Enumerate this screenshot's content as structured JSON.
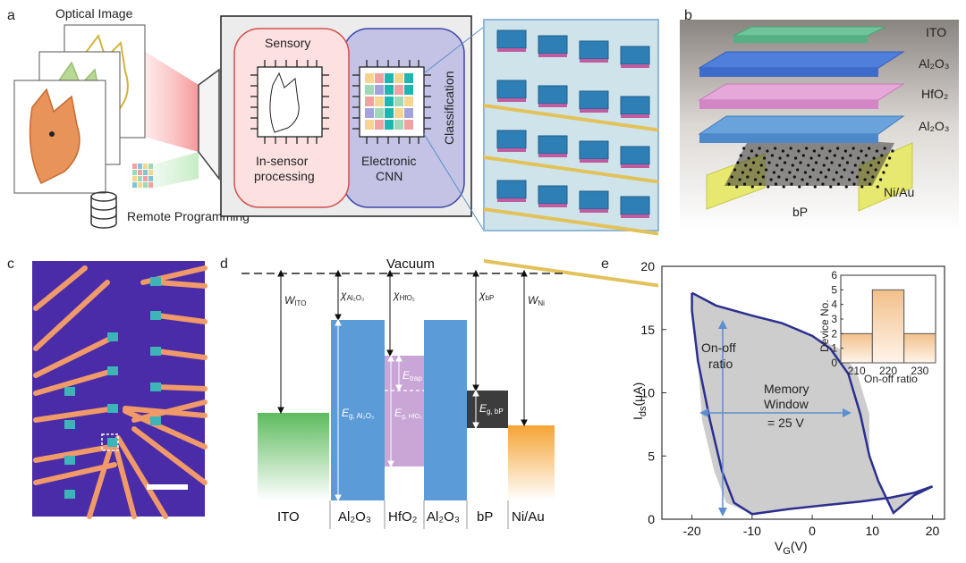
{
  "panel_labels": {
    "a": "a",
    "b": "b",
    "c": "c",
    "d": "d",
    "e": "e"
  },
  "panel_a": {
    "optical_image": "Optical Image",
    "sensory": "Sensory",
    "in_sensor_1": "In-sensor",
    "in_sensor_2": "processing",
    "electronic": "Electronic",
    "cnn": "CNN",
    "classification": "Classification",
    "remote_programming": "Remote Programming"
  },
  "panel_b": {
    "layers": [
      "ITO",
      "Al₂O₃",
      "HfO₂",
      "Al₂O₃"
    ],
    "contact": "Ni/Au",
    "channel": "bP"
  },
  "panel_d": {
    "vacuum": "Vacuum",
    "materials": [
      "ITO",
      "Al₂O₃",
      "HfO₂",
      "Al₂O₃",
      "bP",
      "Ni/Au"
    ],
    "w_ito": "W",
    "w_ito_sub": "ITO",
    "chi_al": "χ",
    "chi_al_sub": "Al₂O₃",
    "chi_hf": "χ",
    "chi_hf_sub": "HfO₂",
    "chi_bp": "χ",
    "chi_bp_sub": "bP",
    "w_ni": "W",
    "w_ni_sub": "Ni",
    "eg_al": "E",
    "eg_al_sub": "g, Al₂O₃",
    "eg_hf": "E",
    "eg_hf_sub": "g, HfO₂",
    "eg_bp": "E",
    "eg_bp_sub": "g, bP",
    "etrap": "E",
    "etrap_sub": "trap"
  },
  "panel_e": {
    "ylabel_main": "I",
    "ylabel_sub": "ds",
    "ylabel_unit": "(μA)",
    "xlabel_main": "V",
    "xlabel_sub": "G",
    "xlabel_unit": "(V)",
    "onoff_1": "On-off",
    "onoff_2": "ratio",
    "mw_1": "Memory",
    "mw_2": "Window",
    "mw_3": "= 25 V",
    "inset_xlabel": "On-off ratio",
    "inset_ylabel": "Device No."
  },
  "chart_data": [
    {
      "type": "line",
      "xlim": [
        -25,
        22
      ],
      "ylim": [
        0,
        20
      ],
      "xticks": [
        -20,
        -10,
        0,
        10,
        20
      ],
      "yticks": [
        0,
        5,
        10,
        15,
        20
      ],
      "series": [
        {
          "values": [
            [
              -20,
              17.9
            ],
            [
              -16,
              16.9
            ],
            [
              -10,
              16.1
            ],
            [
              -5,
              15.5
            ],
            [
              0,
              14.5
            ],
            [
              3,
              13.5
            ],
            [
              6,
              11.5
            ],
            [
              8,
              8.3
            ],
            [
              9.5,
              5.0
            ],
            [
              11,
              3.0
            ],
            [
              12.5,
              1.5
            ],
            [
              13.5,
              0.5
            ],
            [
              14.5,
              0.9
            ],
            [
              17,
              1.9
            ],
            [
              20,
              2.6
            ],
            [
              17,
              2.1
            ],
            [
              13,
              1.7
            ],
            [
              8,
              1.4
            ],
            [
              2,
              1.1
            ],
            [
              -4,
              0.8
            ],
            [
              -10,
              0.4
            ],
            [
              -13,
              1.3
            ],
            [
              -15,
              3.8
            ],
            [
              -17,
              7.8
            ],
            [
              -19,
              12.5
            ],
            [
              -20,
              16.5
            ],
            [
              -20,
              17.9
            ]
          ]
        }
      ]
    },
    {
      "type": "bar",
      "categories": [
        "210",
        "220",
        "230"
      ],
      "values": [
        2,
        5,
        2
      ],
      "ylim": [
        0,
        6
      ],
      "yticks": [
        0,
        1,
        2,
        3,
        4,
        5,
        6
      ],
      "xlabel": "On-off ratio",
      "ylabel": "Device No."
    }
  ]
}
